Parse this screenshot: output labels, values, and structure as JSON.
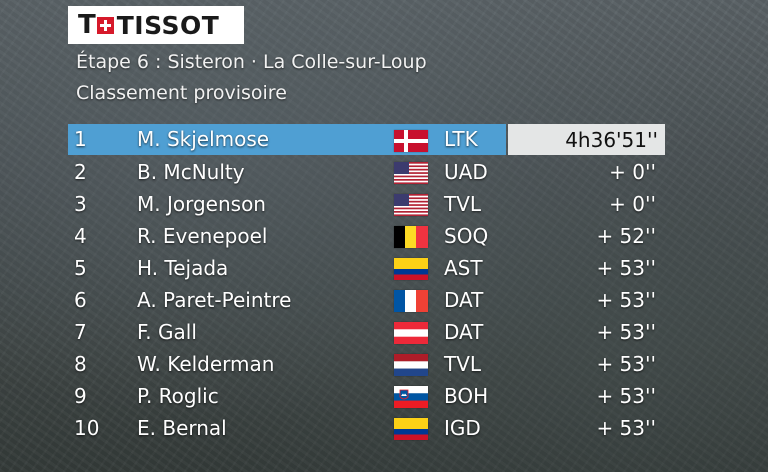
{
  "brand": {
    "logo_letter": "T",
    "logo_word": "TISSOT"
  },
  "header": {
    "stage": "Étape 6 : Sisteron · La Colle-sur-Loup",
    "subtitle": "Classement provisoire"
  },
  "colors": {
    "leader_bar": "#4f9fd3",
    "time_box": "#e4e6e6",
    "logo_red": "#d6192a"
  },
  "standings": [
    {
      "pos": "1",
      "name": "M. Skjelmose",
      "flag": "denmark-flag-icon",
      "team": "LTK",
      "time": "4h36'51''"
    },
    {
      "pos": "2",
      "name": "B. McNulty",
      "flag": "usa-flag-icon",
      "team": "UAD",
      "time": "+ 0''"
    },
    {
      "pos": "3",
      "name": "M. Jorgenson",
      "flag": "usa-flag-icon",
      "team": "TVL",
      "time": "+ 0''"
    },
    {
      "pos": "4",
      "name": "R. Evenepoel",
      "flag": "belgium-flag-icon",
      "team": "SOQ",
      "time": "+ 52''"
    },
    {
      "pos": "5",
      "name": "H. Tejada",
      "flag": "colombia-flag-icon",
      "team": "AST",
      "time": "+ 53''"
    },
    {
      "pos": "6",
      "name": "A. Paret-Peintre",
      "flag": "france-flag-icon",
      "team": "DAT",
      "time": "+ 53''"
    },
    {
      "pos": "7",
      "name": "F. Gall",
      "flag": "austria-flag-icon",
      "team": "DAT",
      "time": "+ 53''"
    },
    {
      "pos": "8",
      "name": "W. Kelderman",
      "flag": "netherlands-flag-icon",
      "team": "TVL",
      "time": "+ 53''"
    },
    {
      "pos": "9",
      "name": "P. Roglic",
      "flag": "slovenia-flag-icon",
      "team": "BOH",
      "time": "+ 53''"
    },
    {
      "pos": "10",
      "name": "E. Bernal",
      "flag": "colombia-flag-icon",
      "team": "IGD",
      "time": "+ 53''"
    }
  ]
}
